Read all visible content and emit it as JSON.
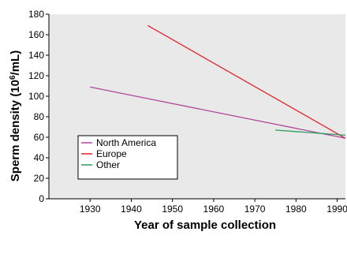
{
  "chart_data": {
    "type": "line",
    "xlabel": "Year of sample collection",
    "ylabel_main": "Sperm density (10",
    "ylabel_sup": "6",
    "ylabel_end": "/mL)",
    "xlim": [
      1920,
      1992
    ],
    "ylim": [
      0,
      180
    ],
    "xticks": [
      1930,
      1940,
      1950,
      1960,
      1970,
      1980,
      1990
    ],
    "yticks": [
      0,
      20,
      40,
      60,
      80,
      100,
      120,
      140,
      160,
      180
    ],
    "grid": false,
    "legend_position": "lower-left",
    "series": [
      {
        "name": "North America",
        "color": "#b0479a",
        "points": [
          [
            1930,
            109
          ],
          [
            1992,
            59
          ]
        ]
      },
      {
        "name": "Europe",
        "color": "#e0262a",
        "points": [
          [
            1944,
            169
          ],
          [
            1992,
            59
          ]
        ]
      },
      {
        "name": "Other",
        "color": "#2a9d5c",
        "points": [
          [
            1975,
            67
          ],
          [
            1992,
            62
          ]
        ]
      }
    ]
  }
}
